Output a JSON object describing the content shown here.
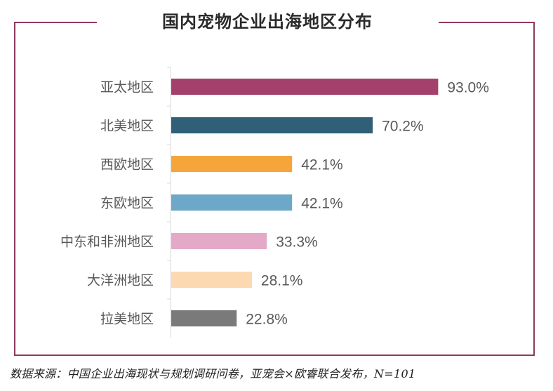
{
  "title": "国内宠物企业出海地区分布",
  "source": "数据来源：中国企业出海现状与规划调研问卷，亚宠会×欧睿联合发布，N=101",
  "chart_data": {
    "type": "bar",
    "orientation": "horizontal",
    "title": "国内宠物企业出海地区分布",
    "xlabel": "",
    "ylabel": "",
    "grid": false,
    "legend": "none",
    "categories": [
      "亚太地区",
      "北美地区",
      "西欧地区",
      "东欧地区",
      "中东和非洲地区",
      "大洋洲地区",
      "拉美地区"
    ],
    "values": [
      93.0,
      70.2,
      42.1,
      42.1,
      33.3,
      28.1,
      22.8
    ],
    "value_labels": [
      "93.0%",
      "70.2%",
      "42.1%",
      "42.1%",
      "33.3%",
      "28.1%",
      "22.8%"
    ],
    "xlim": [
      0,
      100
    ],
    "bar_colors": [
      "#a3406b",
      "#2f6077",
      "#f6a53b",
      "#6ea8c9",
      "#e3a9c7",
      "#fcd9b1",
      "#7a7a7a"
    ]
  }
}
